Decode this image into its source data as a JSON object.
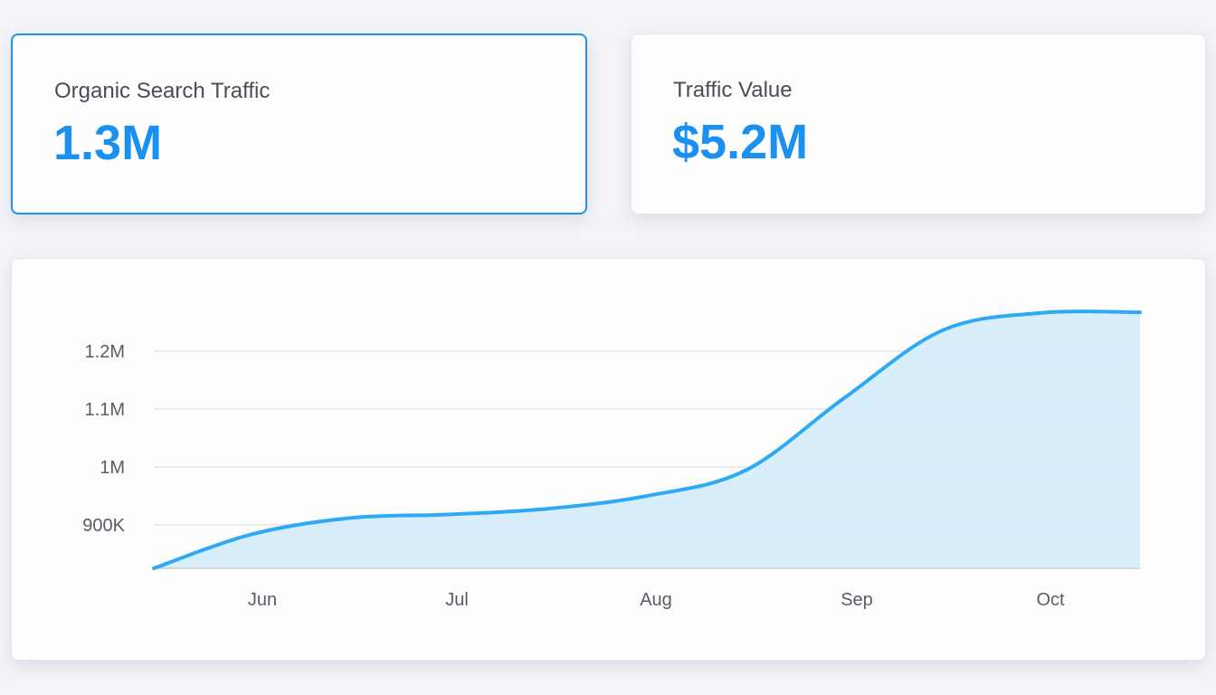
{
  "kpis": [
    {
      "label": "Organic Search Traffic",
      "value": "1.3M",
      "selected": true
    },
    {
      "label": "Traffic Value",
      "value": "$5.2M",
      "selected": false
    }
  ],
  "colors": {
    "accent": "#1a90f0",
    "line": "#2eaaf5",
    "fill": "#d4ecfb",
    "grid": "#e2e4ea"
  },
  "chart_data": {
    "type": "area",
    "title": "",
    "xlabel": "",
    "ylabel": "",
    "x_ticks": [
      "Jun",
      "Jul",
      "Aug",
      "Sep",
      "Oct"
    ],
    "y_ticks": [
      "900K",
      "1M",
      "1.1M",
      "1.2M"
    ],
    "y_tick_values": [
      900000,
      1000000,
      1100000,
      1200000
    ],
    "ylim": [
      825000,
      1300000
    ],
    "grid": true,
    "series": [
      {
        "x": [
          "May 15",
          "Jun 1",
          "Jun 15",
          "Jul 1",
          "Jul 15",
          "Aug 1",
          "Aug 15",
          "Sep 1",
          "Sep 15",
          "Oct 1",
          "Oct 15"
        ],
        "values": [
          825000,
          884000,
          912000,
          918000,
          928000,
          950000,
          994000,
          1119000,
          1236000,
          1266000,
          1267000
        ]
      }
    ]
  }
}
